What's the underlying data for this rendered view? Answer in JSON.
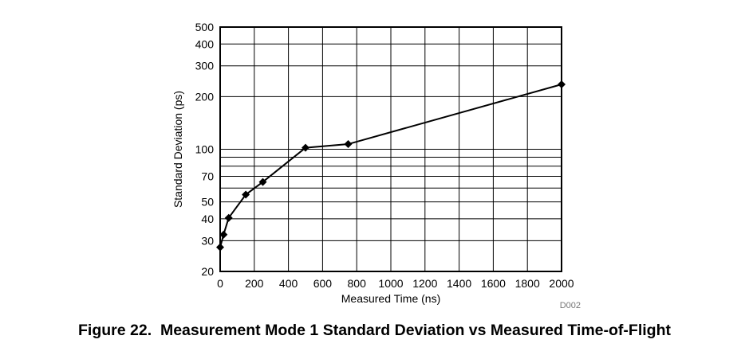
{
  "chart_data": {
    "type": "line",
    "ylog": true,
    "grid": true,
    "xlabel": "Measured Time (ns)",
    "ylabel": "Standard Deviation (ps)",
    "xlim": [
      0,
      2000
    ],
    "ylim": [
      20,
      500
    ],
    "x_ticks": [
      0,
      200,
      400,
      600,
      800,
      1000,
      1200,
      1400,
      1600,
      1800,
      2000
    ],
    "y_ticks": [
      20,
      30,
      40,
      50,
      70,
      100,
      200,
      300,
      400,
      500
    ],
    "y_minor_grid": [
      60,
      80,
      90
    ],
    "marker": "diamond",
    "color": "#000000",
    "x": [
      0,
      20,
      50,
      150,
      250,
      500,
      750,
      2000
    ],
    "y": [
      27.5,
      32.5,
      40.5,
      55,
      65,
      102,
      107,
      235
    ],
    "watermark": "D002"
  },
  "figure": {
    "label": "Figure 22.",
    "title": "Measurement Mode 1 Standard Deviation vs Measured Time-of-Flight"
  }
}
